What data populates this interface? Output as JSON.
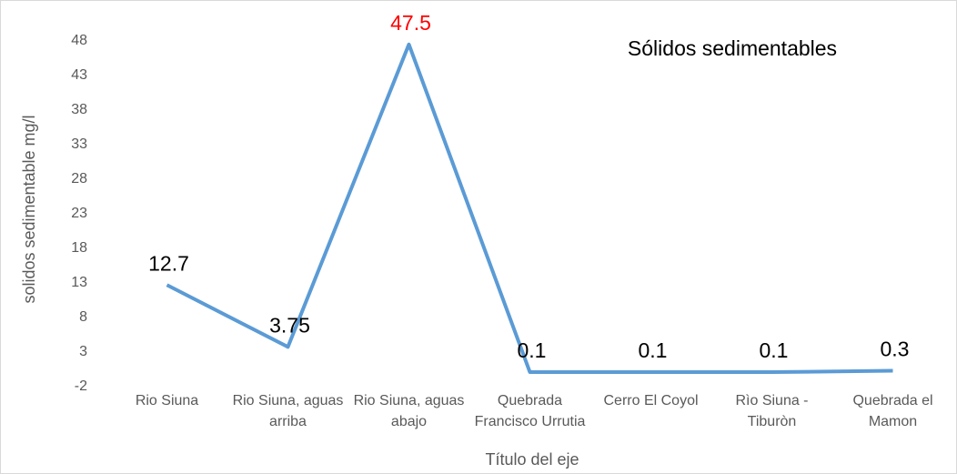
{
  "chart_data": {
    "type": "line",
    "title": "Sólidos sedimentables",
    "x_label": "Título del eje",
    "y_label": "solidos sedimentable mg/l",
    "categories": [
      "Rio Siuna",
      "Rio Siuna, aguas arriba",
      "Rio Siuna, aguas abajo",
      "Quebrada Francisco Urrutia",
      "Cerro El Coyol",
      "Rìo Siuna - Tiburòn",
      "Quebrada el Mamon"
    ],
    "series": [
      {
        "name": "Sólidos sedimentables",
        "color": "#5b9bd5",
        "values": [
          12.7,
          3.75,
          47.5,
          0.1,
          0.1,
          0.1,
          0.3
        ],
        "label_colors": [
          "#000000",
          "#000000",
          "#ff0000",
          "#000000",
          "#000000",
          "#000000",
          "#000000"
        ]
      }
    ],
    "ylim": [
      -2,
      48
    ],
    "yticks": [
      -2,
      3,
      8,
      13,
      18,
      23,
      28,
      33,
      38,
      43,
      48
    ],
    "grid": false
  }
}
